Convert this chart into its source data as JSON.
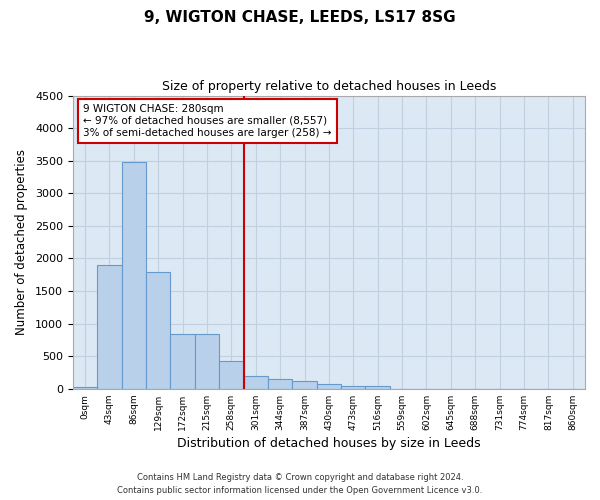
{
  "title": "9, WIGTON CHASE, LEEDS, LS17 8SG",
  "subtitle": "Size of property relative to detached houses in Leeds",
  "xlabel": "Distribution of detached houses by size in Leeds",
  "ylabel": "Number of detached properties",
  "bar_color": "#b8d0ea",
  "bar_edge_color": "#6699cc",
  "grid_color": "#c0d0e0",
  "background_color": "#dce8f4",
  "annotation_box_color": "#cc0000",
  "vline_color": "#cc0000",
  "footnote1": "Contains HM Land Registry data © Crown copyright and database right 2024.",
  "footnote2": "Contains public sector information licensed under the Open Government Licence v3.0.",
  "annotation_line1": "9 WIGTON CHASE: 280sqm",
  "annotation_line2": "← 97% of detached houses are smaller (8,557)",
  "annotation_line3": "3% of semi-detached houses are larger (258) →",
  "vline_x": 6.5,
  "ylim": [
    0,
    4500
  ],
  "yticks": [
    0,
    500,
    1000,
    1500,
    2000,
    2500,
    3000,
    3500,
    4000,
    4500
  ],
  "categories": [
    "0sqm",
    "43sqm",
    "86sqm",
    "129sqm",
    "172sqm",
    "215sqm",
    "258sqm",
    "301sqm",
    "344sqm",
    "387sqm",
    "430sqm",
    "473sqm",
    "516sqm",
    "559sqm",
    "602sqm",
    "645sqm",
    "688sqm",
    "731sqm",
    "774sqm",
    "817sqm",
    "860sqm"
  ],
  "values": [
    30,
    1900,
    3480,
    1790,
    840,
    840,
    420,
    200,
    155,
    120,
    70,
    50,
    50,
    0,
    0,
    0,
    0,
    0,
    0,
    0,
    0
  ]
}
